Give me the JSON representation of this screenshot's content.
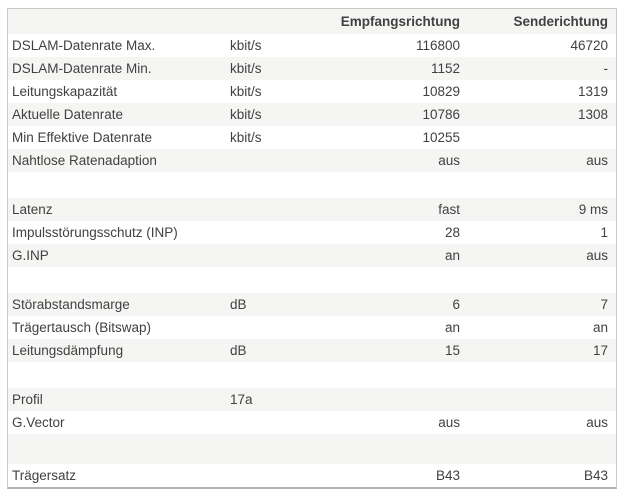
{
  "table": {
    "header": {
      "receive_column": "Empfangsrichtung",
      "send_column": "Senderichtung"
    },
    "rows": [
      {
        "label": "DSLAM-Datenrate Max.",
        "unit": "kbit/s",
        "rx": "116800",
        "tx": "46720"
      },
      {
        "label": "DSLAM-Datenrate Min.",
        "unit": "kbit/s",
        "rx": "1152",
        "tx": "-"
      },
      {
        "label": "Leitungskapazität",
        "unit": "kbit/s",
        "rx": "10829",
        "tx": "1319"
      },
      {
        "label": "Aktuelle Datenrate",
        "unit": "kbit/s",
        "rx": "10786",
        "tx": "1308"
      },
      {
        "label": "Min Effektive Datenrate",
        "unit": "kbit/s",
        "rx": "10255",
        "tx": ""
      },
      {
        "label": "Nahtlose Ratenadaption",
        "unit": "",
        "rx": "aus",
        "tx": "aus"
      },
      {
        "label": "",
        "unit": "",
        "rx": "",
        "tx": ""
      },
      {
        "label": "Latenz",
        "unit": "",
        "rx": "fast",
        "tx": "9 ms"
      },
      {
        "label": "Impulsstörungsschutz (INP)",
        "unit": "",
        "rx": "28",
        "tx": "1"
      },
      {
        "label": "G.INP",
        "unit": "",
        "rx": "an",
        "tx": "aus"
      },
      {
        "label": "",
        "unit": "",
        "rx": "",
        "tx": ""
      },
      {
        "label": "Störabstandsmarge",
        "unit": "dB",
        "rx": "6",
        "tx": "7"
      },
      {
        "label": "Trägertausch (Bitswap)",
        "unit": "",
        "rx": "an",
        "tx": "an"
      },
      {
        "label": "Leitungsdämpfung",
        "unit": "dB",
        "rx": "15",
        "tx": "17"
      },
      {
        "label": "",
        "unit": "",
        "rx": "",
        "tx": ""
      },
      {
        "label": "Profil",
        "unit": "17a",
        "rx": "",
        "tx": ""
      },
      {
        "label": "G.Vector",
        "unit": "",
        "rx": "aus",
        "tx": "aus"
      },
      {
        "label": "",
        "unit": "",
        "rx": "",
        "tx": ""
      },
      {
        "label": "Trägersatz",
        "unit": "",
        "rx": "B43",
        "tx": "B43"
      }
    ]
  },
  "colors": {
    "zebra": "#f5f5f4",
    "row_white": "#ffffff",
    "border": "#cccac8",
    "border_bottom": "#b1b1af",
    "text": "#414141",
    "page_bg": "#ffffff"
  }
}
